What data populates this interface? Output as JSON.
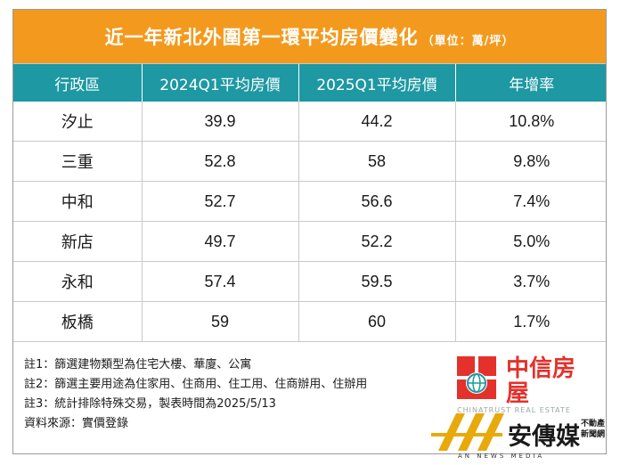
{
  "header": {
    "title": "近一年新北外圍第一環平均房價變化",
    "unit": "（單位：萬/坪）"
  },
  "chart_data": {
    "type": "table",
    "columns": [
      "行政區",
      "2024Q1平均房價",
      "2025Q1平均房價",
      "年增率"
    ],
    "rows": [
      [
        "汐止",
        "39.9",
        "44.2",
        "10.8%"
      ],
      [
        "三重",
        "52.8",
        "58",
        "9.8%"
      ],
      [
        "中和",
        "52.7",
        "56.6",
        "7.4%"
      ],
      [
        "新店",
        "49.7",
        "52.2",
        "5.0%"
      ],
      [
        "永和",
        "57.4",
        "59.5",
        "3.7%"
      ],
      [
        "板橋",
        "59",
        "60",
        "1.7%"
      ]
    ]
  },
  "notes": [
    "註1：篩選建物類型為住宅大樓、華廈、公寓",
    "註2：篩選主要用途為住家用、住商用、住工用、住商辦用、住辦用",
    "註3：統計排除特殊交易，製表時間為2025/5/13",
    "資料來源：實價登錄"
  ],
  "logos": {
    "zhongxin": {
      "text": "中信房屋",
      "subtext": "CHINATRUST REAL ESTATE"
    },
    "anchuan": {
      "name": "安傳媒",
      "side_line1": "不動產",
      "side_line2": "新聞網",
      "subtext": "AN NEWS MEDIA"
    }
  },
  "colors": {
    "title_bg": "#f39a1e",
    "header_bg": "#1e98a2",
    "logo_red": "#e4312b",
    "logo_green": "#1e98a2",
    "logo_gold": "#e8a90c"
  }
}
